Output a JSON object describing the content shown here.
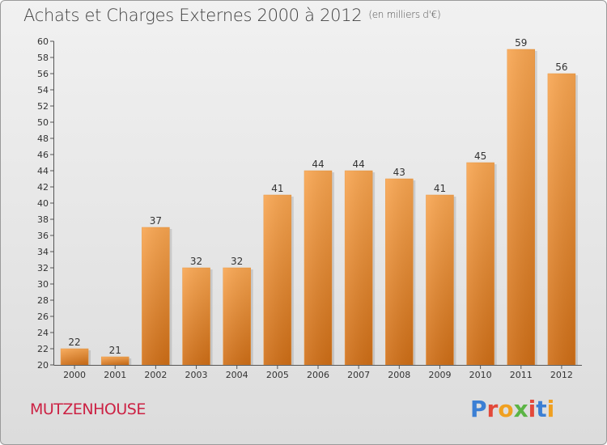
{
  "header": {
    "title": "Achats et Charges Externes 2000 à 2012",
    "unit": "(en milliers d'€)"
  },
  "footer": {
    "town": "MUTZENHOUSE",
    "brand": "Proxiti"
  },
  "colors": {
    "bar_top": "#f8a550",
    "bar_bottom": "#cf6e16",
    "town": "#cc2244"
  },
  "chart_data": {
    "type": "bar",
    "title": "Achats et Charges Externes 2000 à 2012",
    "subtitle": "(en milliers d'€)",
    "xlabel": "",
    "ylabel": "",
    "categories": [
      "2000",
      "2001",
      "2002",
      "2003",
      "2004",
      "2005",
      "2006",
      "2007",
      "2008",
      "2009",
      "2010",
      "2011",
      "2012"
    ],
    "values": [
      22,
      21,
      37,
      32,
      32,
      41,
      44,
      44,
      43,
      41,
      45,
      59,
      56
    ],
    "ylim": [
      20,
      60
    ],
    "ytick_step": 2,
    "grid": false,
    "data_labels": true
  }
}
